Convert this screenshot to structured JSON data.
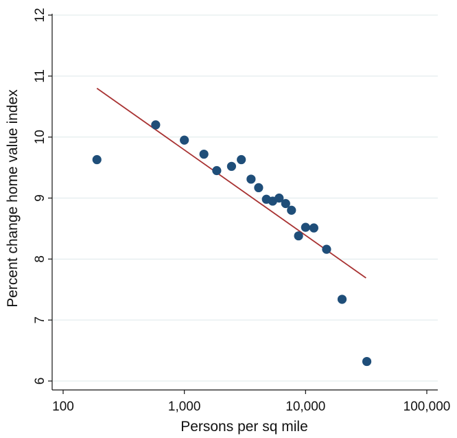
{
  "chart_data": {
    "type": "scatter",
    "title": "",
    "xlabel": "Persons per sq mile",
    "ylabel": "Percent change home value index",
    "x_scale": "log",
    "xlim": [
      100,
      100000
    ],
    "ylim": [
      6,
      12
    ],
    "x_ticks": [
      100,
      1000,
      10000,
      100000
    ],
    "x_tick_labels": [
      "100",
      "1,000",
      "10,000",
      "100,000"
    ],
    "y_ticks": [
      6,
      7,
      8,
      9,
      10,
      11,
      12
    ],
    "y_tick_labels": [
      "6",
      "7",
      "8",
      "9",
      "10",
      "11",
      "12"
    ],
    "grid": "horizontal",
    "colors": {
      "points": "#1f4e79",
      "fit_line": "#a83232",
      "grid": "#dde8ea"
    },
    "series": [
      {
        "kind": "points",
        "points": [
          {
            "x": 190,
            "y": 9.63
          },
          {
            "x": 580,
            "y": 10.2
          },
          {
            "x": 1000,
            "y": 9.95
          },
          {
            "x": 1450,
            "y": 9.72
          },
          {
            "x": 1850,
            "y": 9.45
          },
          {
            "x": 2450,
            "y": 9.52
          },
          {
            "x": 2950,
            "y": 9.63
          },
          {
            "x": 3550,
            "y": 9.31
          },
          {
            "x": 4100,
            "y": 9.17
          },
          {
            "x": 4750,
            "y": 8.98
          },
          {
            "x": 5350,
            "y": 8.95
          },
          {
            "x": 6050,
            "y": 9.0
          },
          {
            "x": 6850,
            "y": 8.91
          },
          {
            "x": 7650,
            "y": 8.8
          },
          {
            "x": 8750,
            "y": 8.38
          },
          {
            "x": 10000,
            "y": 8.52
          },
          {
            "x": 11700,
            "y": 8.51
          },
          {
            "x": 14900,
            "y": 8.16
          },
          {
            "x": 20000,
            "y": 7.34
          },
          {
            "x": 32000,
            "y": 6.32
          }
        ]
      },
      {
        "kind": "fit_line",
        "points": [
          {
            "x": 190,
            "y": 10.8
          },
          {
            "x": 31500,
            "y": 7.69
          }
        ]
      }
    ]
  }
}
